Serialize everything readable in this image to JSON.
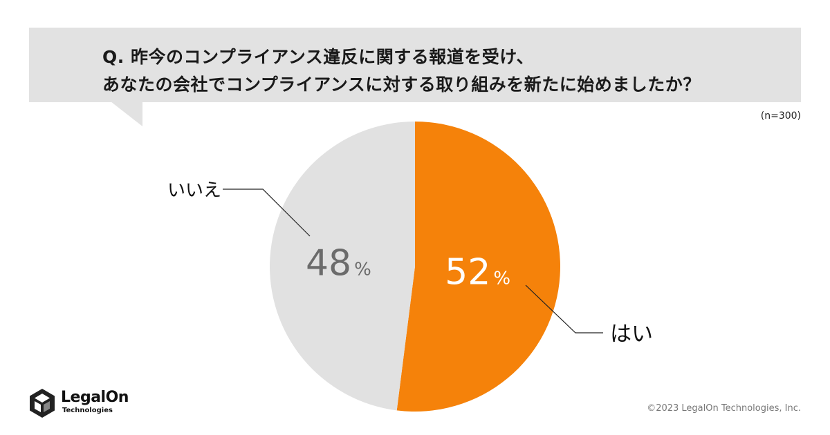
{
  "question": {
    "line1": "Q. 昨今のコンプライアンス違反に関する報道を受け、",
    "line2": "あなたの会社でコンプライアンスに対する取り組みを新たに始めましたか？"
  },
  "sample_size": "(n=300)",
  "chart_data": {
    "type": "pie",
    "categories": [
      "はい",
      "いいえ"
    ],
    "values": [
      52,
      48
    ],
    "unit": "%",
    "value_labels": [
      "52",
      "48"
    ],
    "colors": [
      "#f5820a",
      "#e1e1e1"
    ],
    "value_label_colors": [
      "#ffffff",
      "#6b6b6b"
    ],
    "start": "12 o'clock, clockwise"
  },
  "brand": {
    "name": "LegalOn",
    "sub": "Technologies"
  },
  "copyright": "©2023 LegalOn Technologies, Inc."
}
